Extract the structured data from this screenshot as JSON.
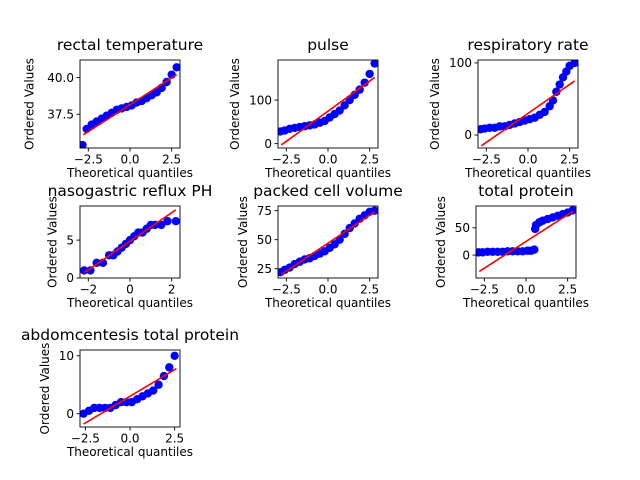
{
  "figure": {
    "title": ""
  },
  "chart_data": [
    {
      "type": "scatter",
      "title": "rectal temperature",
      "xlabel": "Theoretical quantiles",
      "ylabel": "Ordered Values",
      "xlim": [
        -3.0,
        3.0
      ],
      "ylim": [
        35.2,
        41.2
      ],
      "xticks": [
        -2.5,
        0.0,
        2.5
      ],
      "xtick_labels": [
        "−2.5",
        "0.0",
        "2.5"
      ],
      "yticks": [
        37.5,
        40.0
      ],
      "ytick_labels": [
        "37.5",
        "40.0"
      ],
      "points_x": [
        -2.85,
        -2.6,
        -2.3,
        -2.0,
        -1.7,
        -1.4,
        -1.1,
        -0.8,
        -0.5,
        -0.2,
        0.1,
        0.4,
        0.7,
        1.0,
        1.3,
        1.6,
        1.9,
        2.2,
        2.5,
        2.8
      ],
      "points_y": [
        35.4,
        36.5,
        36.8,
        37.0,
        37.2,
        37.4,
        37.6,
        37.8,
        37.9,
        38.0,
        38.1,
        38.3,
        38.4,
        38.6,
        38.8,
        39.0,
        39.3,
        39.7,
        40.2,
        40.7
      ],
      "fit_line": {
        "x": [
          -2.8,
          2.8
        ],
        "y": [
          36.1,
          40.2
        ]
      },
      "marker_color": "#0000ff",
      "line_color": "#ff0000"
    },
    {
      "type": "scatter",
      "title": "pulse",
      "xlabel": "Theoretical quantiles",
      "ylabel": "Ordered Values",
      "xlim": [
        -3.0,
        3.0
      ],
      "ylim": [
        -10,
        192
      ],
      "xticks": [
        -2.5,
        0.0,
        2.5
      ],
      "xtick_labels": [
        "−2.5",
        "0.0",
        "2.5"
      ],
      "yticks": [
        0,
        100
      ],
      "ytick_labels": [
        "0",
        "100"
      ],
      "points_x": [
        -2.85,
        -2.6,
        -2.3,
        -2.0,
        -1.7,
        -1.4,
        -1.1,
        -0.8,
        -0.5,
        -0.2,
        0.1,
        0.4,
        0.7,
        1.0,
        1.3,
        1.6,
        1.9,
        2.2,
        2.5,
        2.8
      ],
      "points_y": [
        28,
        30,
        34,
        36,
        38,
        40,
        42,
        44,
        48,
        52,
        60,
        68,
        76,
        88,
        100,
        112,
        124,
        140,
        160,
        184
      ],
      "fit_line": {
        "x": [
          -2.8,
          2.8
        ],
        "y": [
          -3,
          152
        ]
      },
      "marker_color": "#0000ff",
      "line_color": "#ff0000"
    },
    {
      "type": "scatter",
      "title": "respiratory rate",
      "xlabel": "Theoretical quantiles",
      "ylabel": "Ordered Values",
      "xlim": [
        -3.0,
        3.0
      ],
      "ylim": [
        -18,
        104
      ],
      "xticks": [
        -2.5,
        0.0,
        2.5
      ],
      "xtick_labels": [
        "−2.5",
        "0.0",
        "2.5"
      ],
      "yticks": [
        0,
        100
      ],
      "ytick_labels": [
        "0",
        "100"
      ],
      "points_x": [
        -2.85,
        -2.6,
        -2.3,
        -2.0,
        -1.7,
        -1.4,
        -1.1,
        -0.8,
        -0.5,
        -0.2,
        0.1,
        0.4,
        0.7,
        1.0,
        1.3,
        1.5,
        1.7,
        1.9,
        2.1,
        2.3,
        2.5,
        2.8
      ],
      "points_y": [
        8,
        9,
        10,
        10,
        12,
        12,
        14,
        16,
        18,
        20,
        22,
        24,
        28,
        32,
        40,
        48,
        60,
        70,
        80,
        88,
        96,
        100
      ],
      "fit_line": {
        "x": [
          -2.8,
          2.8
        ],
        "y": [
          -15,
          75
        ]
      },
      "marker_color": "#0000ff",
      "line_color": "#ff0000"
    },
    {
      "type": "scatter",
      "title": "nasogastric reflux PH",
      "xlabel": "Theoretical quantiles",
      "ylabel": "Ordered Values",
      "xlim": [
        -2.4,
        2.4
      ],
      "ylim": [
        0.0,
        9.5
      ],
      "xticks": [
        -2,
        0,
        2
      ],
      "xtick_labels": [
        "−2",
        "0",
        "2"
      ],
      "yticks": [
        0,
        5
      ],
      "ytick_labels": [
        "0",
        "5"
      ],
      "points_x": [
        -2.2,
        -1.9,
        -1.6,
        -1.3,
        -1.0,
        -0.8,
        -0.6,
        -0.4,
        -0.2,
        0.0,
        0.2,
        0.4,
        0.6,
        0.8,
        1.0,
        1.2,
        1.5,
        1.8,
        2.2
      ],
      "points_y": [
        1.0,
        1.0,
        2.0,
        2.0,
        3.0,
        3.0,
        3.5,
        4.0,
        4.5,
        5.0,
        5.5,
        6.0,
        6.0,
        6.5,
        7.0,
        7.0,
        7.0,
        7.5,
        7.5
      ],
      "fit_line": {
        "x": [
          -2.2,
          2.2
        ],
        "y": [
          0.7,
          9.0
        ]
      },
      "marker_color": "#0000ff",
      "line_color": "#ff0000"
    },
    {
      "type": "scatter",
      "title": "packed cell volume",
      "xlabel": "Theoretical quantiles",
      "ylabel": "Ordered Values",
      "xlim": [
        -3.0,
        3.0
      ],
      "ylim": [
        17,
        79
      ],
      "xticks": [
        -2.5,
        0.0,
        2.5
      ],
      "xtick_labels": [
        "−2.5",
        "0.0",
        "2.5"
      ],
      "yticks": [
        25,
        50,
        75
      ],
      "ytick_labels": [
        "25",
        "50",
        "75"
      ],
      "points_x": [
        -2.85,
        -2.6,
        -2.3,
        -2.0,
        -1.7,
        -1.4,
        -1.1,
        -0.8,
        -0.5,
        -0.2,
        0.1,
        0.4,
        0.7,
        1.0,
        1.3,
        1.6,
        1.9,
        2.2,
        2.5,
        2.8
      ],
      "points_y": [
        22,
        24,
        26,
        29,
        31,
        33,
        34,
        36,
        38,
        40,
        43,
        46,
        50,
        55,
        60,
        64,
        68,
        71,
        74,
        75
      ],
      "fit_line": {
        "x": [
          -2.8,
          2.8
        ],
        "y": [
          20,
          74
        ]
      },
      "marker_color": "#0000ff",
      "line_color": "#ff0000"
    },
    {
      "type": "scatter",
      "title": "total protein",
      "xlabel": "Theoretical quantiles",
      "ylabel": "Ordered Values",
      "xlim": [
        -3.0,
        3.0
      ],
      "ylim": [
        -42,
        90
      ],
      "xticks": [
        -2.5,
        0.0,
        2.5
      ],
      "xtick_labels": [
        "−2.5",
        "0.0",
        "2.5"
      ],
      "yticks": [
        0,
        50
      ],
      "ytick_labels": [
        "0",
        "50"
      ],
      "points_x": [
        -2.85,
        -2.6,
        -2.3,
        -2.0,
        -1.7,
        -1.4,
        -1.1,
        -0.8,
        -0.5,
        -0.2,
        0.1,
        0.3,
        0.5,
        0.55,
        0.6,
        0.8,
        1.0,
        1.3,
        1.6,
        1.9,
        2.2,
        2.5,
        2.8
      ],
      "points_y": [
        5,
        5,
        6,
        6,
        6,
        6,
        7,
        7,
        7,
        7,
        8,
        8,
        10,
        48,
        55,
        60,
        63,
        66,
        69,
        72,
        75,
        78,
        82
      ],
      "fit_line": {
        "x": [
          -2.8,
          2.8
        ],
        "y": [
          -30,
          80
        ]
      },
      "marker_color": "#0000ff",
      "line_color": "#ff0000"
    },
    {
      "type": "scatter",
      "title": "abdomcentesis total protein",
      "xlabel": "Theoretical quantiles",
      "ylabel": "Ordered Values",
      "xlim": [
        -2.8,
        2.8
      ],
      "ylim": [
        -2.3,
        11.0
      ],
      "xticks": [
        -2.5,
        0.0,
        2.5
      ],
      "xtick_labels": [
        "−2.5",
        "0.0",
        "2.5"
      ],
      "yticks": [
        0,
        10
      ],
      "ytick_labels": [
        "0",
        "10"
      ],
      "points_x": [
        -2.6,
        -2.3,
        -2.0,
        -1.7,
        -1.4,
        -1.1,
        -0.8,
        -0.5,
        -0.2,
        0.1,
        0.4,
        0.7,
        1.0,
        1.3,
        1.6,
        1.9,
        2.2,
        2.5
      ],
      "points_y": [
        0.0,
        0.5,
        1.0,
        1.0,
        1.0,
        1.0,
        1.5,
        2.0,
        2.0,
        2.0,
        2.5,
        3.0,
        3.5,
        4.0,
        5.0,
        6.5,
        8.0,
        10.0
      ],
      "fit_line": {
        "x": [
          -2.6,
          2.6
        ],
        "y": [
          -1.8,
          7.8
        ]
      },
      "marker_color": "#0000ff",
      "line_color": "#ff0000"
    }
  ]
}
